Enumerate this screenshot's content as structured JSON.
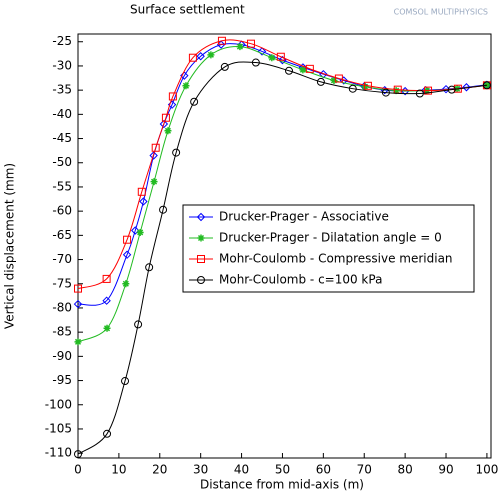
{
  "chart_data": {
    "type": "line",
    "title": "Surface settlement",
    "logo": "COMSOL MULTIPHYSICS",
    "x_label": "Distance from mid-axis (m)",
    "y_label": "Vertical displacement (mm)",
    "xlim": [
      0,
      101
    ],
    "ylim": [
      -111,
      -23.4
    ],
    "xticks": [
      0,
      10,
      20,
      30,
      40,
      50,
      60,
      70,
      80,
      90,
      100
    ],
    "yticks": [
      -25,
      -30,
      -35,
      -40,
      -45,
      -50,
      -55,
      -60,
      -65,
      -70,
      -75,
      -80,
      -85,
      -90,
      -95,
      -100,
      -105,
      -110
    ],
    "grid": false,
    "legend": "center-right",
    "series": [
      {
        "name": "Drucker-Prager - Associative",
        "color": "#0000ff",
        "marker": "diamond",
        "x": [
          0,
          7,
          12,
          14,
          16,
          18.5,
          21,
          23,
          26,
          30,
          35,
          40,
          45,
          50,
          55,
          60,
          65,
          70,
          75,
          80,
          85,
          90,
          95,
          100
        ],
        "values": [
          -79.2,
          -78.5,
          -69,
          -64,
          -58,
          -48.5,
          -42,
          -38,
          -32,
          -28,
          -25.6,
          -25.6,
          -27,
          -28.8,
          -30.3,
          -31.7,
          -33,
          -34.2,
          -35,
          -35.2,
          -35,
          -34.8,
          -34.4,
          -33.9
        ]
      },
      {
        "name": "Drucker-Prager - Dilatation angle = 0",
        "color": "#22bb22",
        "marker": "asterisk",
        "x": [
          0,
          7.1,
          11.7,
          15.2,
          18.6,
          22,
          26.4,
          32.5,
          39.6,
          47.4,
          55,
          62.6,
          70.2,
          77.8,
          85.3,
          92.7,
          100
        ],
        "values": [
          -87,
          -84.2,
          -75,
          -64.4,
          -53.9,
          -43.4,
          -34.1,
          -27.7,
          -26,
          -28.3,
          -30.8,
          -33,
          -34.3,
          -35.1,
          -35.1,
          -34.7,
          -34
        ]
      },
      {
        "name": "Mohr-Coulomb - Compressive meridian",
        "color": "#ff0000",
        "marker": "square",
        "x": [
          0,
          7,
          12,
          15.6,
          19,
          21.5,
          23.2,
          28.1,
          35.2,
          42.3,
          49.6,
          56.7,
          63.8,
          70.9,
          78.2,
          85.6,
          92.9,
          100
        ],
        "values": [
          -76,
          -74,
          -65.9,
          -56,
          -46.9,
          -40.7,
          -36.3,
          -28.3,
          -24.8,
          -25.4,
          -28.1,
          -30.6,
          -32.6,
          -34.1,
          -34.9,
          -35.1,
          -34.7,
          -34
        ]
      },
      {
        "name": "Mohr-Coulomb - c=100 kPa",
        "color": "#000000",
        "marker": "circle",
        "x": [
          0,
          7.1,
          11.5,
          14.7,
          17.4,
          20.8,
          24,
          28.4,
          35.9,
          43.5,
          51.6,
          59.4,
          67.2,
          75.3,
          83.6,
          91.4,
          100
        ],
        "values": [
          -110.2,
          -106,
          -95.1,
          -83.4,
          -71.6,
          -59.7,
          -47.9,
          -37.4,
          -30.2,
          -29.3,
          -31,
          -33.3,
          -34.7,
          -35.5,
          -35.7,
          -34.9,
          -34
        ]
      }
    ]
  }
}
